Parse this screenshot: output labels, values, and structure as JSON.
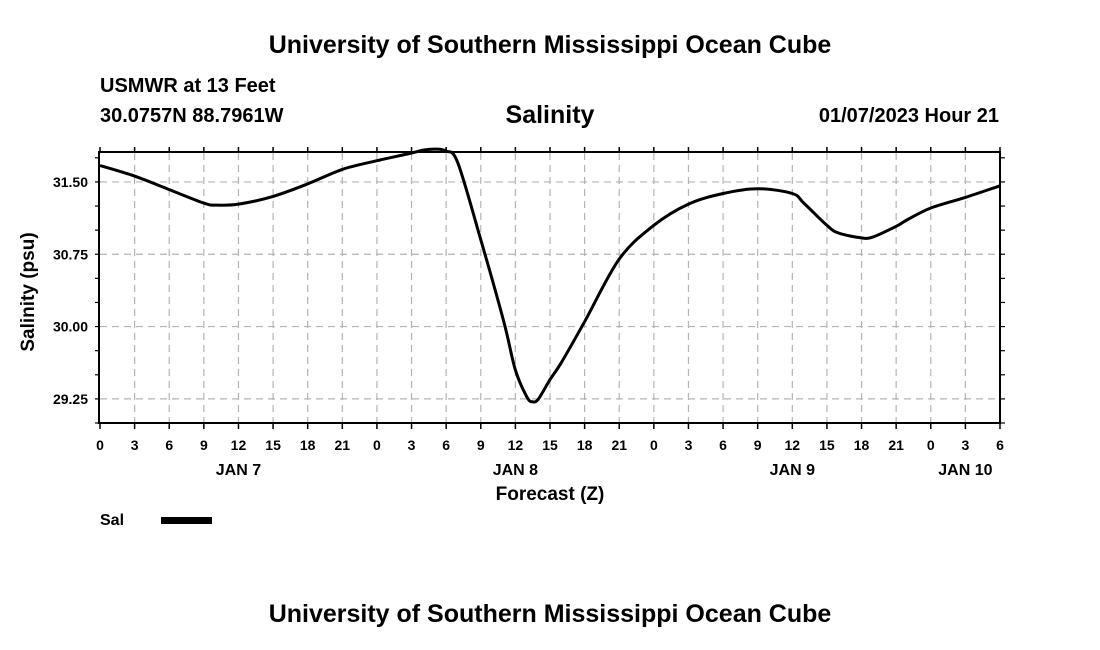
{
  "header": {
    "title_top": "University of Southern Mississippi Ocean Cube",
    "station": "USMWR at 13 Feet",
    "coords": "30.0757N  88.7961W",
    "timestamp": "01/07/2023 Hour 21",
    "title_bottom": "University of Southern Mississippi Ocean Cube"
  },
  "legend": {
    "label": "Sal"
  },
  "chart_data": {
    "type": "line",
    "title": "Salinity",
    "xlabel": "Forecast (Z)",
    "ylabel": "Salinity (psu)",
    "xlim": [
      0,
      78
    ],
    "ylim": [
      29.0,
      31.8
    ],
    "x_ticks": [
      0,
      3,
      6,
      9,
      12,
      15,
      18,
      21,
      24,
      27,
      30,
      33,
      36,
      39,
      42,
      45,
      48,
      51,
      54,
      57,
      60,
      63,
      66,
      69,
      72,
      75,
      78
    ],
    "x_tick_labels": [
      "0",
      "3",
      "6",
      "9",
      "12",
      "15",
      "18",
      "21",
      "0",
      "3",
      "6",
      "9",
      "12",
      "15",
      "18",
      "21",
      "0",
      "3",
      "6",
      "9",
      "12",
      "15",
      "18",
      "21",
      "0",
      "3",
      "6"
    ],
    "y_ticks": [
      29.25,
      30.0,
      30.75,
      31.5
    ],
    "y_tick_labels": [
      "29.25",
      "30.00",
      "30.75",
      "31.50"
    ],
    "day_labels": [
      {
        "x": 12,
        "label": "JAN 7"
      },
      {
        "x": 36,
        "label": "JAN 8"
      },
      {
        "x": 60,
        "label": "JAN 9"
      },
      {
        "x": 75,
        "label": "JAN 10"
      }
    ],
    "series": [
      {
        "name": "Sal",
        "x": [
          0,
          3,
          6,
          9,
          10,
          12,
          15,
          18,
          21,
          24,
          27,
          28,
          29,
          30,
          31,
          33,
          35,
          36,
          37,
          37.5,
          38,
          39,
          40,
          42,
          45,
          48,
          51,
          54,
          57,
          60,
          61,
          63,
          64,
          66,
          67,
          69,
          70,
          72,
          75,
          78
        ],
        "values": [
          31.67,
          31.56,
          31.42,
          31.28,
          31.26,
          31.27,
          31.35,
          31.48,
          31.63,
          31.72,
          31.8,
          31.83,
          31.84,
          31.82,
          31.7,
          30.9,
          30.05,
          29.55,
          29.27,
          29.22,
          29.25,
          29.45,
          29.63,
          30.05,
          30.7,
          31.05,
          31.27,
          31.38,
          31.43,
          31.38,
          31.28,
          31.05,
          30.97,
          30.92,
          30.93,
          31.04,
          31.11,
          31.23,
          31.34,
          31.46
        ]
      }
    ]
  }
}
